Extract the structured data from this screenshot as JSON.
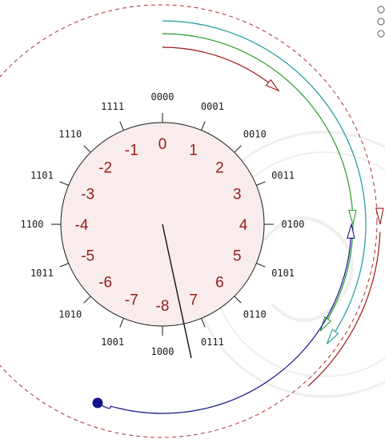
{
  "colors": {
    "outer_dashed": "#a83232",
    "disc_fill": "#f8ecec",
    "disc_stroke": "#1a1a1a",
    "decimal_text": "#9b1c1c",
    "binary_text": "#1a1a1a",
    "arc_red": "#a01818",
    "arc_green": "#2a9a2a",
    "arc_teal": "#1a9a9a",
    "arc_blue": "#14148c",
    "watermark": "#efefef"
  },
  "circle": {
    "binary_codes": [
      "0000",
      "0001",
      "0010",
      "0011",
      "0100",
      "0101",
      "0110",
      "0111",
      "1000",
      "1001",
      "1010",
      "1011",
      "1100",
      "1101",
      "1110",
      "1111"
    ],
    "decimal_values": [
      "0",
      "1",
      "2",
      "3",
      "4",
      "5",
      "6",
      "7",
      "-8",
      "-7",
      "-6",
      "-5",
      "-4",
      "-3",
      "-2",
      "-1"
    ]
  },
  "pointer": {
    "points_to": "-8"
  },
  "arrows": [
    {
      "id": "red",
      "color_key": "arc_red"
    },
    {
      "id": "green",
      "color_key": "arc_green"
    },
    {
      "id": "teal",
      "color_key": "arc_teal"
    },
    {
      "id": "blue",
      "color_key": "arc_blue"
    }
  ]
}
